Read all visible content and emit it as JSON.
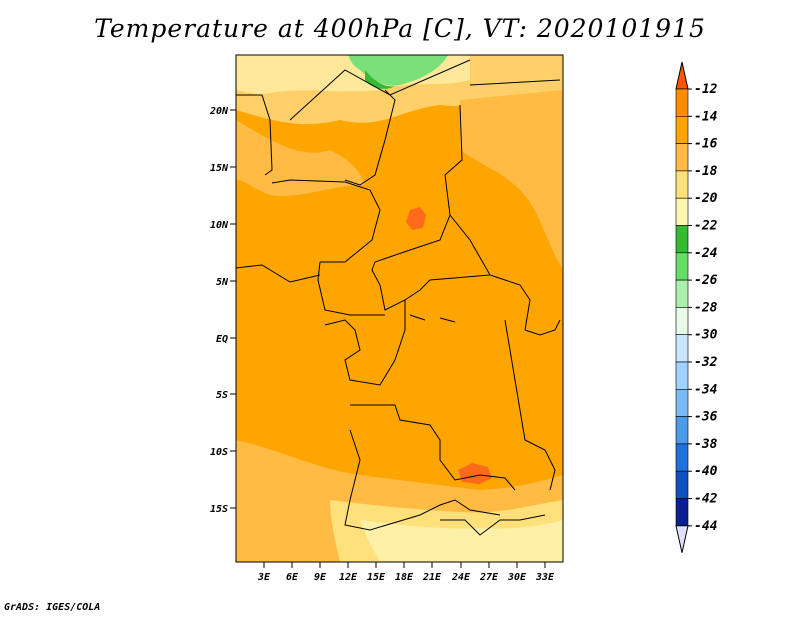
{
  "title": "Temperature at 400hPa [C], VT: 2020101915",
  "credit": "GrADS: IGES/COLA",
  "map": {
    "lat_labels": [
      "20N",
      "15N",
      "10N",
      "5N",
      "EQ",
      "5S",
      "10S",
      "15S"
    ],
    "lon_labels": [
      "3E",
      "6E",
      "9E",
      "12E",
      "15E",
      "18E",
      "21E",
      "24E",
      "27E",
      "30E",
      "33E"
    ]
  },
  "colorbar": {
    "labels": [
      "-12",
      "-14",
      "-16",
      "-18",
      "-20",
      "-22",
      "-24",
      "-26",
      "-28",
      "-30",
      "-32",
      "-34",
      "-36",
      "-38",
      "-40",
      "-42",
      "-44"
    ],
    "colors": [
      "#ff5500",
      "#ff8c00",
      "#ffa500",
      "#ffbb44",
      "#ffe07a",
      "#fff4b0",
      "#33bb33",
      "#66dd66",
      "#aaf0aa",
      "#e8fbe8",
      "#c8e6ff",
      "#a0d2ff",
      "#78bbf5",
      "#4c9ae8",
      "#2070dd",
      "#1050c0",
      "#0a2090",
      "#000060"
    ]
  }
}
